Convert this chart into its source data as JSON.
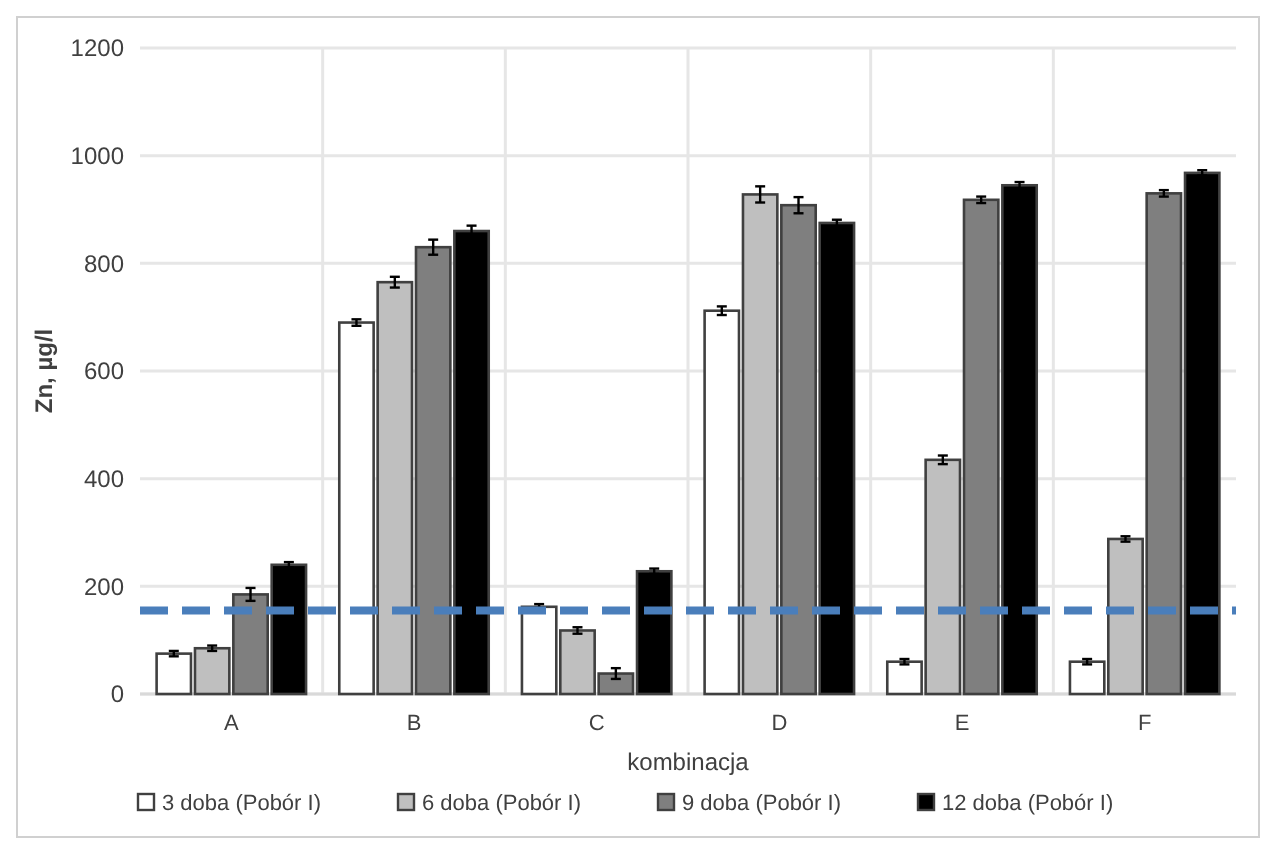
{
  "chart_data": {
    "type": "bar",
    "xlabel": "kombinacja",
    "ylabel": "Zn, µg/l",
    "categories": [
      "A",
      "B",
      "C",
      "D",
      "E",
      "F"
    ],
    "series": [
      {
        "name": "3 doba (Pobór I)",
        "color": "#ffffff",
        "values": [
          75,
          690,
          162,
          712,
          60,
          60
        ],
        "errors": [
          5,
          6,
          5,
          8,
          5,
          5
        ]
      },
      {
        "name": "6 doba (Pobór I)",
        "color": "#bfbfbf",
        "values": [
          85,
          765,
          118,
          928,
          435,
          288
        ],
        "errors": [
          5,
          10,
          6,
          15,
          8,
          5
        ]
      },
      {
        "name": "9 doba (Pobór I)",
        "color": "#7f7f7f",
        "values": [
          185,
          830,
          38,
          908,
          918,
          930
        ],
        "errors": [
          12,
          14,
          10,
          15,
          6,
          6
        ]
      },
      {
        "name": "12 doba (Pobór I)",
        "color": "#000000",
        "values": [
          240,
          860,
          228,
          875,
          945,
          968
        ],
        "errors": [
          5,
          10,
          5,
          6,
          6,
          5
        ]
      }
    ],
    "ylim": [
      0,
      1200
    ],
    "yticks": [
      0,
      200,
      400,
      600,
      800,
      1000,
      1200
    ],
    "grid": true,
    "legend": "bottom",
    "ref_lines": [
      {
        "axis": "y",
        "value": 155,
        "color": "#4a7ebb",
        "line_style": "dashed"
      }
    ]
  }
}
